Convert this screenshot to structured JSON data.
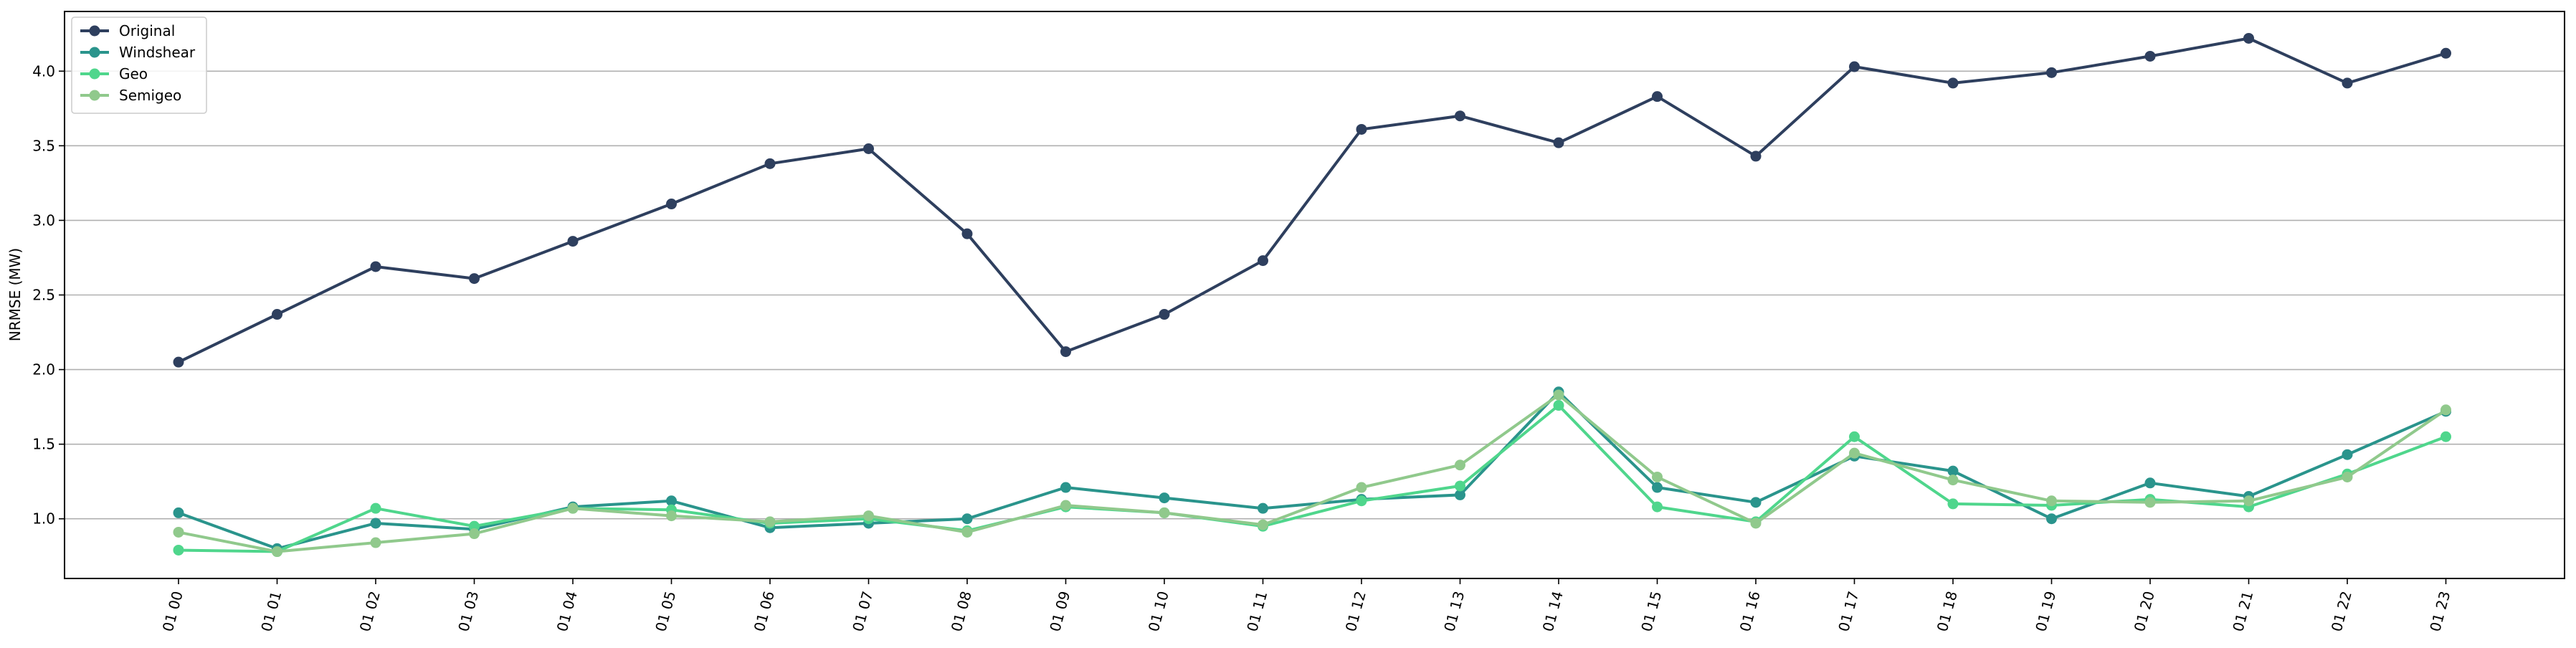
{
  "chart_data": {
    "type": "line",
    "title": "",
    "xlabel": "",
    "ylabel": "NRMSE (MW)",
    "ylim": [
      0.6,
      4.4
    ],
    "yticks": [
      1.0,
      1.5,
      2.0,
      2.5,
      3.0,
      3.5,
      4.0
    ],
    "ytick_labels": [
      "1.0",
      "1.5",
      "2.0",
      "2.5",
      "3.0",
      "3.5",
      "4.0"
    ],
    "grid": "horizontal",
    "legend_position": "upper-left",
    "categories": [
      "01 00",
      "01 01",
      "01 02",
      "01 03",
      "01 04",
      "01 05",
      "01 06",
      "01 07",
      "01 08",
      "01 09",
      "01 10",
      "01 11",
      "01 12",
      "01 13",
      "01 14",
      "01 15",
      "01 16",
      "01 17",
      "01 18",
      "01 19",
      "01 20",
      "01 21",
      "01 22",
      "01 23"
    ],
    "series": [
      {
        "name": "Original",
        "color": "#2e3f5e",
        "values": [
          2.05,
          2.37,
          2.69,
          2.61,
          2.86,
          3.11,
          3.38,
          3.48,
          2.91,
          2.12,
          2.37,
          2.73,
          3.61,
          3.7,
          3.52,
          3.83,
          3.43,
          4.03,
          3.92,
          3.99,
          4.1,
          4.22,
          3.92,
          4.12
        ]
      },
      {
        "name": "Windshear",
        "color": "#2a948c",
        "values": [
          1.04,
          0.8,
          0.97,
          0.93,
          1.08,
          1.12,
          0.94,
          0.97,
          1.0,
          1.21,
          1.14,
          1.07,
          1.13,
          1.16,
          1.85,
          1.21,
          1.11,
          1.42,
          1.32,
          1.0,
          1.24,
          1.15,
          1.43,
          1.72
        ]
      },
      {
        "name": "Geo",
        "color": "#4fd68c",
        "values": [
          0.79,
          0.78,
          1.07,
          0.95,
          1.07,
          1.06,
          0.97,
          1.0,
          0.92,
          1.08,
          1.04,
          0.95,
          1.12,
          1.22,
          1.76,
          1.08,
          0.98,
          1.55,
          1.1,
          1.09,
          1.13,
          1.08,
          1.3,
          1.55
        ]
      },
      {
        "name": "Semigeo",
        "color": "#90c98c",
        "values": [
          0.91,
          0.78,
          0.84,
          0.9,
          1.07,
          1.02,
          0.98,
          1.02,
          0.91,
          1.09,
          1.04,
          0.96,
          1.21,
          1.36,
          1.83,
          1.28,
          0.97,
          1.44,
          1.26,
          1.12,
          1.11,
          1.12,
          1.28,
          1.73
        ]
      }
    ]
  }
}
